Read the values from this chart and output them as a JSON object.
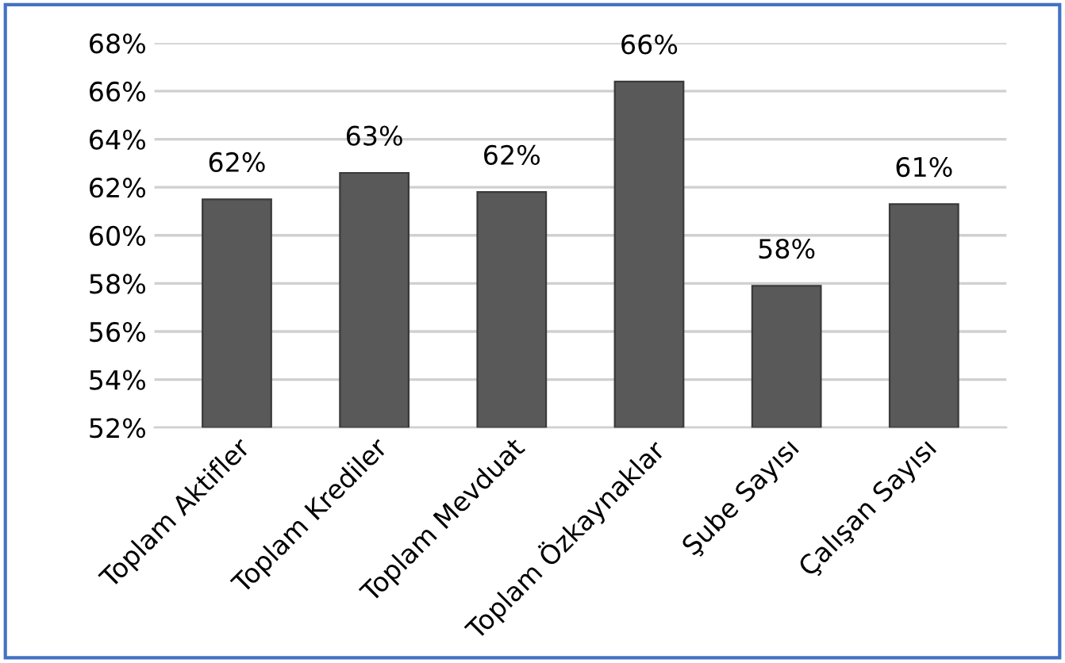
{
  "chart_data": {
    "type": "bar",
    "categories": [
      "Toplam Aktifler",
      "Toplam Krediler",
      "Toplam Mevduat",
      "Toplam Özkaynaklar",
      "Şube Sayısı",
      "Çalışan Sayısı"
    ],
    "values": [
      61.5,
      62.6,
      61.8,
      66.4,
      57.9,
      61.3
    ],
    "value_labels": [
      "62%",
      "63%",
      "62%",
      "66%",
      "58%",
      "61%"
    ],
    "color": "#595959",
    "ylim": [
      52,
      68
    ],
    "yticks": [
      {
        "value": 52,
        "label": "52%"
      },
      {
        "value": 54,
        "label": "54%"
      },
      {
        "value": 56,
        "label": "56%"
      },
      {
        "value": 58,
        "label": "58%"
      },
      {
        "value": 60,
        "label": "60%"
      },
      {
        "value": 62,
        "label": "62%"
      },
      {
        "value": 64,
        "label": "64%"
      },
      {
        "value": 66,
        "label": "66%"
      },
      {
        "value": 68,
        "label": "68%"
      }
    ],
    "grid": "y"
  }
}
